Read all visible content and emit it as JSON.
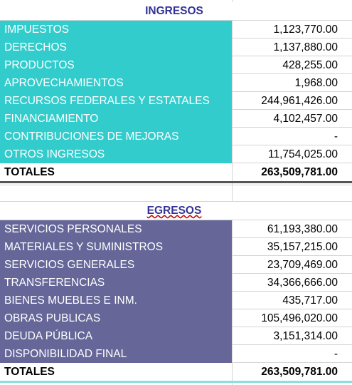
{
  "ingresos": {
    "title": "INGRESOS",
    "rows": [
      [
        "IMPUESTOS",
        "1,123,770.00"
      ],
      [
        "DERECHOS",
        "1,137,880.00"
      ],
      [
        "PRODUCTOS",
        "428,255.00"
      ],
      [
        "APROVECHAMIENTOS",
        "1,968.00"
      ],
      [
        "RECURSOS FEDERALES Y ESTATALES",
        "244,961,426.00"
      ],
      [
        "FINANCIAMIENTO",
        "4,102,457.00"
      ],
      [
        "CONTRIBUCIONES DE MEJORAS",
        "-"
      ],
      [
        "OTROS INGRESOS",
        "11,754,025.00"
      ]
    ],
    "total": [
      "TOTALES",
      "263,509,781.00"
    ]
  },
  "egresos": {
    "title": "EGRESOS",
    "rows": [
      [
        "SERVICIOS PERSONALES",
        "61,193,380.00"
      ],
      [
        "MATERIALES Y SUMINISTROS",
        "35,157,215.00"
      ],
      [
        "SERVICIOS GENERALES",
        "23,709,469.00"
      ],
      [
        "TRANSFERENCIAS",
        "34,366,666.00"
      ],
      [
        "BIENES MUEBLES E INM.",
        "435,717.00"
      ],
      [
        "OBRAS PUBLICAS",
        "105,496,020.00"
      ],
      [
        "DEUDA PÚBLICA",
        "3,151,314.00"
      ],
      [
        "DISPONIBILIDAD FINAL",
        "-"
      ]
    ],
    "total": [
      "TOTALES",
      "263,509,781.00"
    ]
  }
}
